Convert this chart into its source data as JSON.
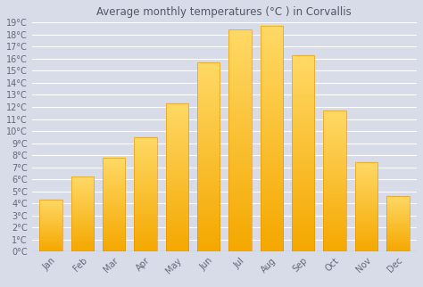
{
  "title": "Average monthly temperatures (°C ) in Corvallis",
  "months": [
    "Jan",
    "Feb",
    "Mar",
    "Apr",
    "May",
    "Jun",
    "Jul",
    "Aug",
    "Sep",
    "Oct",
    "Nov",
    "Dec"
  ],
  "values": [
    4.3,
    6.2,
    7.8,
    9.5,
    12.3,
    15.7,
    18.4,
    18.7,
    16.3,
    11.7,
    7.4,
    4.6
  ],
  "bar_color_bottom": "#F5A800",
  "bar_color_top": "#FFD966",
  "bar_edge_color": "#E09000",
  "ylim": [
    0,
    19
  ],
  "yticks": [
    0,
    1,
    2,
    3,
    4,
    5,
    6,
    7,
    8,
    9,
    10,
    11,
    12,
    13,
    14,
    15,
    16,
    17,
    18,
    19
  ],
  "background_color": "#D8DCE8",
  "plot_bg_color": "#D8DCE8",
  "grid_color": "#FFFFFF",
  "title_color": "#555566",
  "tick_color": "#666677",
  "title_fontsize": 8.5,
  "tick_fontsize": 7.0
}
